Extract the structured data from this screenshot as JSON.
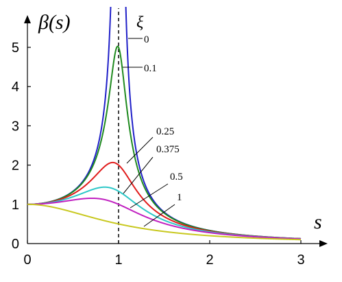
{
  "chart_data": {
    "type": "line",
    "ylabel": "β(s)",
    "xlabel": "s",
    "legend_title": "ξ",
    "xlim": [
      0,
      3
    ],
    "ylim": [
      0,
      5.5
    ],
    "x_ticks": [
      "0",
      "1",
      "2",
      "3"
    ],
    "y_ticks": [
      "0",
      "1",
      "2",
      "3",
      "4",
      "5"
    ],
    "reference_line": {
      "x": 1,
      "style": "dashed"
    },
    "series": [
      {
        "name": "0",
        "xi": 0,
        "color": "#1f1fc8"
      },
      {
        "name": "0.1",
        "xi": 0.1,
        "color": "#1e8a1e"
      },
      {
        "name": "0.25",
        "xi": 0.25,
        "color": "#e01a1a"
      },
      {
        "name": "0.375",
        "xi": 0.375,
        "color": "#2bc7c7"
      },
      {
        "name": "0.5",
        "xi": 0.5,
        "color": "#c01fc0"
      },
      {
        "name": "1",
        "xi": 1,
        "color": "#c8c81e"
      }
    ]
  }
}
